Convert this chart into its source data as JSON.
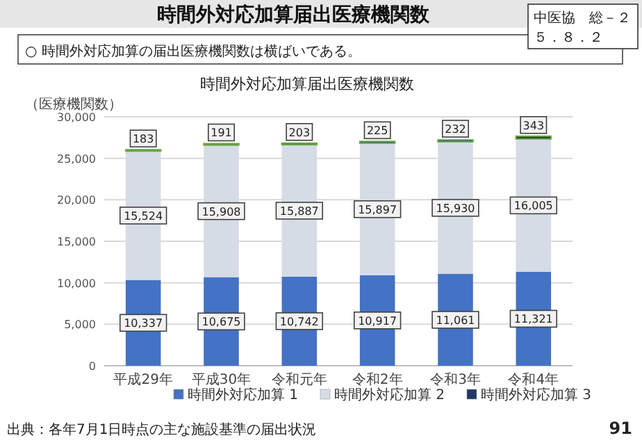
{
  "chart_data": {
    "type": "bar",
    "title": "時間外対応加算届出医療機関数",
    "subtitle": "○ 時間外対応加算の届出医療機関数は横ばいである。",
    "ylabel": "（医療機関数）",
    "categories": [
      "平成29年",
      "平成30年",
      "令和元年",
      "令和2年",
      "令和3年",
      "令和4年"
    ],
    "series": [
      {
        "name": "時間外対応加算 1",
        "color": "#4472c4",
        "values": [
          10337,
          10675,
          10742,
          10917,
          11061,
          11321
        ],
        "value_labels": [
          "10,337",
          "10,675",
          "10,742",
          "10,917",
          "11,061",
          "11,321"
        ]
      },
      {
        "name": "時間外対応加算 2",
        "color": "#d6dce5",
        "values": [
          15524,
          15908,
          15887,
          15897,
          15930,
          16005
        ],
        "value_labels": [
          "15,524",
          "15,908",
          "15,887",
          "15,897",
          "15,930",
          "16,005"
        ]
      },
      {
        "name": "時間外対応加算 3",
        "color": "#1f3864",
        "values": [
          183,
          191,
          203,
          225,
          232,
          343
        ],
        "value_labels": [
          "183",
          "191",
          "203",
          "225",
          "232",
          "343"
        ]
      }
    ],
    "stacked": true,
    "ylim": [
      0,
      30000
    ],
    "yticks": [
      {
        "value": 0,
        "label": "0"
      },
      {
        "value": 5000,
        "label": "5,000"
      },
      {
        "value": 10000,
        "label": "10,000"
      },
      {
        "value": 15000,
        "label": "15,000"
      },
      {
        "value": 20000,
        "label": "20,000"
      },
      {
        "value": 25000,
        "label": "25,000"
      },
      {
        "value": 30000,
        "label": "30,000"
      }
    ],
    "grid": "y",
    "legend": "bottom",
    "annotations": [
      "時間外対応加算届出医療機関数",
      "中医協　総－２",
      "５．８．２",
      "出典：各年7月1日時点の主な施設基準の届出状況",
      "91"
    ]
  }
}
